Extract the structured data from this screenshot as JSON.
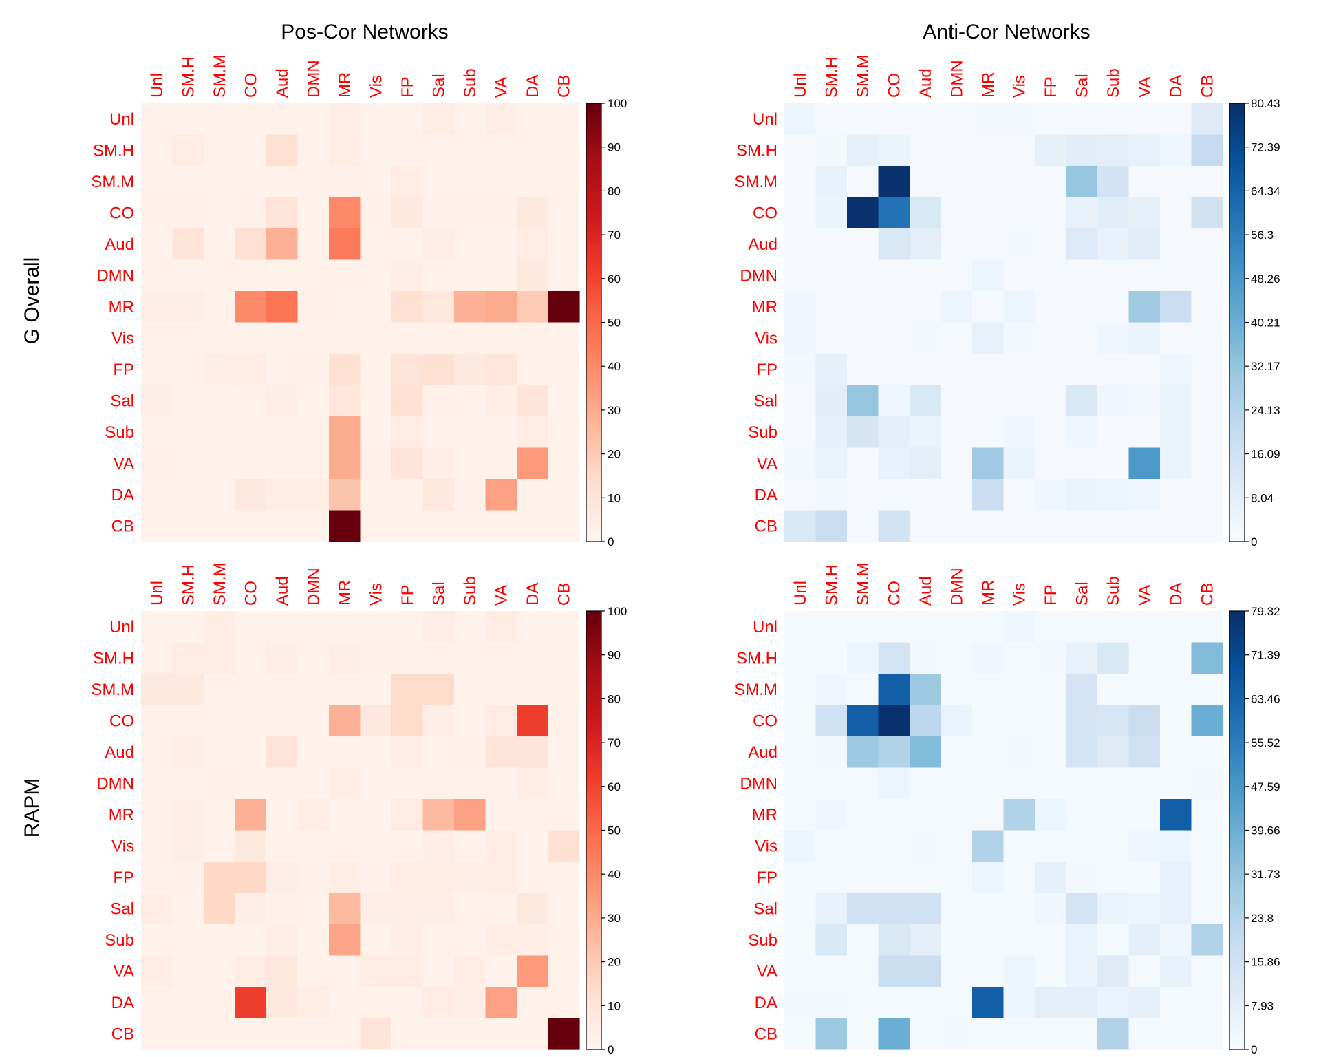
{
  "figure": {
    "col_titles": [
      "Pos-Cor Networks",
      "Anti-Cor Networks"
    ],
    "row_titles": [
      "G Overall",
      "RAPM"
    ],
    "label_color": "#ff0000"
  },
  "chart_data": [
    {
      "type": "heatmap",
      "row": 0,
      "col": 0,
      "colormap": "Reds",
      "categories": [
        "Unl",
        "SM.H",
        "SM.M",
        "CO",
        "Aud",
        "DMN",
        "MR",
        "Vis",
        "FP",
        "Sal",
        "Sub",
        "VA",
        "DA",
        "CB"
      ],
      "range": [
        0,
        100
      ],
      "colorbar_ticks": [
        "0",
        "10",
        "20",
        "30",
        "40",
        "50",
        "60",
        "70",
        "80",
        "90",
        "100"
      ],
      "values": [
        [
          2,
          2,
          2,
          2,
          2,
          2,
          4,
          2,
          2,
          5,
          2,
          4,
          2,
          2
        ],
        [
          2,
          6,
          2,
          2,
          12,
          2,
          5,
          2,
          2,
          2,
          2,
          2,
          2,
          2
        ],
        [
          2,
          2,
          2,
          2,
          2,
          2,
          3,
          2,
          6,
          2,
          2,
          2,
          2,
          2
        ],
        [
          3,
          3,
          2,
          3,
          10,
          2,
          40,
          3,
          7,
          3,
          3,
          3,
          7,
          2
        ],
        [
          2,
          10,
          2,
          12,
          28,
          2,
          45,
          2,
          2,
          4,
          2,
          2,
          6,
          2
        ],
        [
          2,
          2,
          2,
          2,
          2,
          2,
          3,
          2,
          4,
          2,
          2,
          2,
          7,
          2
        ],
        [
          4,
          4,
          2,
          40,
          47,
          3,
          2,
          2,
          12,
          8,
          28,
          30,
          20,
          100
        ],
        [
          2,
          2,
          2,
          2,
          2,
          2,
          2,
          2,
          2,
          2,
          2,
          2,
          2,
          2
        ],
        [
          2,
          2,
          4,
          5,
          2,
          3,
          12,
          2,
          10,
          12,
          7,
          9,
          2,
          2
        ],
        [
          4,
          2,
          2,
          2,
          4,
          2,
          9,
          2,
          12,
          3,
          2,
          5,
          10,
          2
        ],
        [
          2,
          2,
          2,
          2,
          2,
          2,
          30,
          2,
          6,
          2,
          2,
          2,
          6,
          2
        ],
        [
          3,
          2,
          2,
          2,
          2,
          2,
          30,
          3,
          10,
          4,
          2,
          2,
          35,
          2
        ],
        [
          2,
          2,
          2,
          7,
          5,
          5,
          22,
          2,
          2,
          8,
          3,
          33,
          2,
          2
        ],
        [
          2,
          2,
          2,
          2,
          2,
          2,
          100,
          2,
          2,
          2,
          2,
          2,
          2,
          2
        ]
      ]
    },
    {
      "type": "heatmap",
      "row": 0,
      "col": 1,
      "colormap": "Blues",
      "categories": [
        "Unl",
        "SM.H",
        "SM.M",
        "CO",
        "Aud",
        "DMN",
        "MR",
        "Vis",
        "FP",
        "Sal",
        "Sub",
        "VA",
        "DA",
        "CB"
      ],
      "range": [
        0,
        80.43
      ],
      "colorbar_ticks": [
        "0",
        "8.04",
        "16.09",
        "24.13",
        "32.17",
        "40.21",
        "48.26",
        "56.3",
        "64.34",
        "72.39",
        "80.43"
      ],
      "values": [
        [
          4,
          1,
          1,
          1,
          1,
          1,
          2,
          2,
          1,
          1,
          1,
          1,
          1,
          10
        ],
        [
          1,
          2,
          7,
          5,
          1,
          1,
          1,
          1,
          7,
          9,
          8,
          6,
          3,
          20
        ],
        [
          1,
          6,
          1,
          80,
          1,
          1,
          1,
          1,
          1,
          32,
          15,
          1,
          1,
          1
        ],
        [
          1,
          5,
          80,
          60,
          12,
          1,
          1,
          1,
          1,
          6,
          9,
          7,
          1,
          16
        ],
        [
          1,
          1,
          1,
          12,
          8,
          1,
          1,
          2,
          1,
          11,
          6,
          9,
          1,
          1
        ],
        [
          1,
          1,
          1,
          1,
          1,
          1,
          4,
          1,
          1,
          1,
          1,
          1,
          1,
          1
        ],
        [
          3,
          1,
          1,
          1,
          1,
          4,
          1,
          4,
          1,
          1,
          1,
          30,
          18,
          1
        ],
        [
          3,
          1,
          1,
          1,
          2,
          1,
          6,
          2,
          1,
          1,
          3,
          5,
          1,
          1
        ],
        [
          2,
          7,
          1,
          1,
          1,
          1,
          1,
          1,
          1,
          1,
          1,
          1,
          3,
          1
        ],
        [
          1,
          9,
          32,
          3,
          12,
          1,
          1,
          1,
          1,
          12,
          3,
          2,
          5,
          1
        ],
        [
          1,
          7,
          14,
          8,
          5,
          1,
          1,
          3,
          1,
          3,
          1,
          1,
          5,
          1
        ],
        [
          2,
          5,
          1,
          6,
          8,
          1,
          30,
          5,
          1,
          1,
          1,
          48,
          5,
          1
        ],
        [
          1,
          2,
          1,
          1,
          1,
          1,
          18,
          1,
          3,
          5,
          4,
          3,
          1,
          1
        ],
        [
          12,
          18,
          1,
          15,
          1,
          1,
          1,
          1,
          1,
          1,
          1,
          1,
          1,
          1
        ]
      ]
    },
    {
      "type": "heatmap",
      "row": 1,
      "col": 0,
      "colormap": "Reds",
      "categories": [
        "Unl",
        "SM.H",
        "SM.M",
        "CO",
        "Aud",
        "DMN",
        "MR",
        "Vis",
        "FP",
        "Sal",
        "Sub",
        "VA",
        "DA",
        "CB"
      ],
      "range": [
        0,
        100
      ],
      "colorbar_ticks": [
        "0",
        "10",
        "20",
        "30",
        "40",
        "50",
        "60",
        "70",
        "80",
        "90",
        "100"
      ],
      "values": [
        [
          2,
          2,
          5,
          2,
          2,
          2,
          2,
          2,
          2,
          4,
          2,
          5,
          2,
          2
        ],
        [
          2,
          6,
          6,
          2,
          4,
          2,
          4,
          3,
          2,
          2,
          2,
          2,
          2,
          2
        ],
        [
          7,
          7,
          2,
          2,
          2,
          2,
          2,
          2,
          14,
          14,
          2,
          2,
          2,
          2
        ],
        [
          2,
          2,
          2,
          2,
          2,
          2,
          28,
          8,
          14,
          4,
          2,
          6,
          62,
          2
        ],
        [
          2,
          4,
          2,
          2,
          10,
          2,
          2,
          2,
          4,
          2,
          3,
          10,
          10,
          2
        ],
        [
          2,
          2,
          3,
          2,
          2,
          2,
          5,
          2,
          2,
          2,
          2,
          2,
          5,
          2
        ],
        [
          2,
          4,
          2,
          28,
          2,
          5,
          2,
          2,
          6,
          25,
          33,
          2,
          2,
          2
        ],
        [
          2,
          4,
          2,
          7,
          2,
          2,
          2,
          2,
          2,
          4,
          2,
          5,
          2,
          12
        ],
        [
          2,
          3,
          15,
          15,
          4,
          3,
          5,
          3,
          5,
          5,
          4,
          5,
          2,
          2
        ],
        [
          5,
          2,
          15,
          4,
          3,
          2,
          25,
          4,
          4,
          4,
          2,
          2,
          7,
          2
        ],
        [
          2,
          2,
          2,
          2,
          4,
          2,
          32,
          2,
          4,
          2,
          2,
          5,
          4,
          2
        ],
        [
          5,
          2,
          2,
          5,
          8,
          2,
          2,
          6,
          6,
          2,
          5,
          2,
          35,
          2
        ],
        [
          2,
          2,
          2,
          62,
          8,
          5,
          2,
          2,
          2,
          6,
          4,
          33,
          2,
          2
        ],
        [
          2,
          2,
          2,
          2,
          2,
          2,
          2,
          10,
          2,
          2,
          2,
          2,
          2,
          100
        ]
      ]
    },
    {
      "type": "heatmap",
      "row": 1,
      "col": 1,
      "colormap": "Blues",
      "categories": [
        "Unl",
        "SM.H",
        "SM.M",
        "CO",
        "Aud",
        "DMN",
        "MR",
        "Vis",
        "FP",
        "Sal",
        "Sub",
        "VA",
        "DA",
        "CB"
      ],
      "range": [
        0,
        79.32
      ],
      "colorbar_ticks": [
        "0",
        "7.93",
        "15.86",
        "23.8",
        "31.73",
        "39.66",
        "47.59",
        "55.52",
        "63.46",
        "71.39",
        "79.32"
      ],
      "values": [
        [
          1,
          1,
          1,
          1,
          1,
          1,
          1,
          3,
          1,
          1,
          1,
          1,
          1,
          1
        ],
        [
          1,
          1,
          4,
          14,
          2,
          1,
          3,
          1,
          2,
          6,
          12,
          1,
          1,
          35
        ],
        [
          1,
          3,
          1,
          65,
          30,
          1,
          1,
          1,
          1,
          14,
          1,
          1,
          1,
          1
        ],
        [
          1,
          16,
          65,
          79,
          22,
          5,
          1,
          1,
          1,
          14,
          13,
          18,
          1,
          40
        ],
        [
          1,
          2,
          30,
          25,
          35,
          1,
          1,
          2,
          1,
          14,
          10,
          16,
          1,
          1
        ],
        [
          1,
          1,
          1,
          4,
          1,
          1,
          1,
          1,
          1,
          1,
          1,
          1,
          1,
          2
        ],
        [
          1,
          3,
          1,
          1,
          1,
          1,
          1,
          25,
          4,
          1,
          1,
          1,
          65,
          1
        ],
        [
          4,
          1,
          1,
          1,
          2,
          1,
          25,
          1,
          1,
          1,
          1,
          3,
          4,
          1
        ],
        [
          1,
          1,
          1,
          1,
          1,
          1,
          4,
          1,
          7,
          2,
          1,
          1,
          6,
          1
        ],
        [
          1,
          6,
          16,
          16,
          16,
          1,
          1,
          1,
          3,
          14,
          5,
          4,
          6,
          1
        ],
        [
          1,
          12,
          1,
          12,
          8,
          1,
          1,
          1,
          1,
          5,
          1,
          8,
          3,
          25
        ],
        [
          1,
          1,
          1,
          18,
          18,
          1,
          1,
          4,
          1,
          5,
          10,
          1,
          6,
          1
        ],
        [
          2,
          2,
          1,
          1,
          1,
          1,
          65,
          4,
          8,
          8,
          5,
          7,
          1,
          1
        ],
        [
          1,
          30,
          1,
          40,
          1,
          2,
          1,
          1,
          1,
          1,
          25,
          1,
          1,
          1
        ]
      ]
    }
  ]
}
